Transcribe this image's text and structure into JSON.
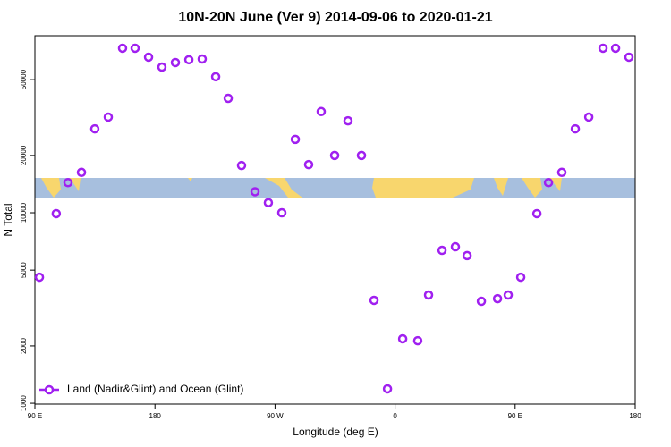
{
  "chart_data": {
    "type": "scatter",
    "title": "10N-20N June (Ver 9)   2014-09-06 to 2020-01-21",
    "x_label": "Longitude (deg E)",
    "y_label": "N Total",
    "log_y": true,
    "xlim": [
      90,
      540
    ],
    "xticks": [
      {
        "value": 90,
        "label": "90 E"
      },
      {
        "value": 180,
        "label": "180"
      },
      {
        "value": 270,
        "label": "90 W"
      },
      {
        "value": 360,
        "label": "0"
      },
      {
        "value": 450,
        "label": "90 E"
      },
      {
        "value": 540,
        "label": "180"
      }
    ],
    "ylim": [
      990,
      85000
    ],
    "yticks": [
      1000,
      2000,
      5000,
      10000,
      20000,
      50000
    ],
    "legend_position": "bottom-left",
    "series": [
      {
        "name": "Land (Nadir&Glint) and Ocean (Glint)",
        "color": "#a020f0",
        "x": [
          93.4,
          106,
          114.8,
          124.9,
          134.9,
          145,
          155.7,
          165.1,
          175.2,
          185.2,
          195.3,
          205.4,
          215.4,
          225.5,
          234.9,
          244.9,
          255,
          265,
          275.1,
          285.2,
          295.2,
          304.6,
          314.7,
          324.7,
          334.8,
          344.2,
          354.3,
          365.7,
          377,
          385.1,
          395.2,
          405.2,
          414,
          424.7,
          436.8,
          444.8,
          454.2,
          466.3,
          475,
          485,
          495.1,
          505.2,
          515.9,
          525.3,
          535.3
        ],
        "values": [
          4590,
          9900,
          14400,
          16300,
          27600,
          31800,
          73100,
          73100,
          65600,
          58200,
          61500,
          63600,
          64200,
          51800,
          39900,
          17700,
          12900,
          11300,
          10000,
          24300,
          17900,
          34000,
          20000,
          30400,
          20000,
          3470,
          1190,
          2180,
          2130,
          3700,
          6350,
          6630,
          5960,
          3430,
          3540,
          3700,
          4590,
          9900,
          14400,
          16300,
          27600,
          31800,
          73100,
          73100,
          65600
        ]
      }
    ]
  }
}
